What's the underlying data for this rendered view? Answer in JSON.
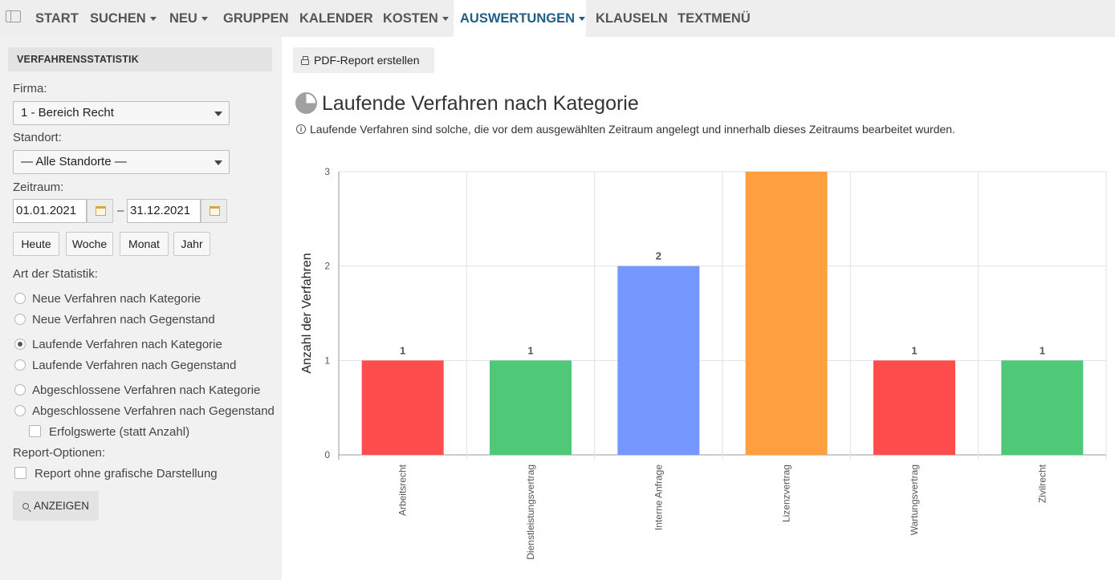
{
  "nav": {
    "items": [
      {
        "label": "START",
        "caret": false
      },
      {
        "label": "SUCHEN",
        "caret": true
      },
      {
        "label": "NEU",
        "caret": true
      },
      {
        "label": "GRUPPEN",
        "caret": false
      },
      {
        "label": "KALENDER",
        "caret": false
      },
      {
        "label": "KOSTEN",
        "caret": true
      },
      {
        "label": "AUSWERTUNGEN",
        "caret": true,
        "active": true
      },
      {
        "label": "KLAUSELN",
        "caret": false
      },
      {
        "label": "TEXTMENÜ",
        "caret": false
      }
    ]
  },
  "sidebar": {
    "heading": "VERFAHRENSSTATISTIK",
    "firma_label": "Firma:",
    "firma_value": "1 - Bereich Recht",
    "standort_label": "Standort:",
    "standort_value": "— Alle Standorte —",
    "zeitraum_label": "Zeitraum:",
    "date_from": "01.01.2021",
    "date_separator": "–",
    "date_to": "31.12.2021",
    "quick_buttons": [
      "Heute",
      "Woche",
      "Monat",
      "Jahr"
    ],
    "art_label": "Art der Statistik:",
    "radio_options": [
      "Neue Verfahren nach Kategorie",
      "Neue Verfahren nach Gegenstand",
      "Laufende Verfahren nach Kategorie",
      "Laufende Verfahren nach Gegenstand",
      "Abgeschlossene Verfahren nach Kategorie",
      "Abgeschlossene Verfahren nach Gegenstand"
    ],
    "selected_radio": "Laufende Verfahren nach Kategorie",
    "erfolgswerte_label": "Erfolgswerte (statt Anzahl)",
    "report_options_label": "Report-Optionen:",
    "report_checkbox_label": "Report ohne grafische Darstellung",
    "show_button": "ANZEIGEN"
  },
  "main": {
    "pdf_button": "PDF-Report erstellen",
    "title": "Laufende Verfahren nach Kategorie",
    "info_text": "Laufende Verfahren sind solche, die vor dem ausgewählten Zeitraum angelegt und innerhalb dieses Zeitraums bearbeitet wurden."
  },
  "chart_data": {
    "type": "bar",
    "categories": [
      "Arbeitsrecht",
      "Dienstleistungsvertrag",
      "Interne Anfrage",
      "Lizenzvertrag",
      "Wartungsvertrag",
      "Zivilrecht"
    ],
    "values": [
      1,
      1,
      2,
      3,
      1,
      1
    ],
    "data_labels": [
      "1",
      "1",
      "2",
      "",
      "1",
      "1"
    ],
    "colors": [
      "#ff4d4d",
      "#4fc877",
      "#7498ff",
      "#ff9f40",
      "#ff4d4d",
      "#4fc877"
    ],
    "ylabel": "Anzahl der Verfahren",
    "xlabel": "",
    "ylim": [
      0,
      3
    ],
    "yticks": [
      0,
      1,
      2,
      3
    ],
    "grid": true,
    "legend": "none"
  }
}
